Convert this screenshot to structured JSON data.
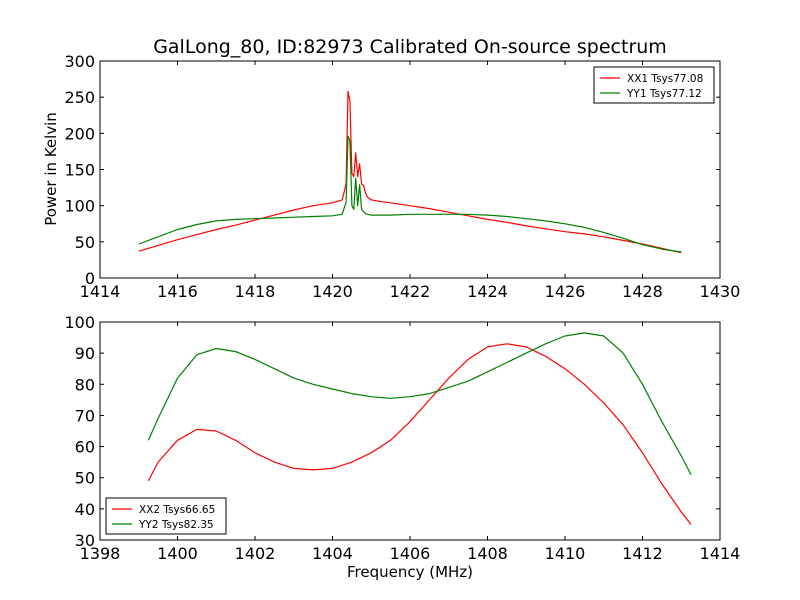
{
  "chart_data": [
    {
      "type": "line",
      "title": "GalLong_80, ID:82973 Calibrated On-source spectrum",
      "xlabel": "",
      "ylabel": "Power in Kelvin",
      "xlim": [
        1414,
        1430
      ],
      "ylim": [
        0,
        300
      ],
      "xticks": [
        1414,
        1416,
        1418,
        1420,
        1422,
        1424,
        1426,
        1428,
        1430
      ],
      "yticks": [
        0,
        50,
        100,
        150,
        200,
        250,
        300
      ],
      "legend_position": "top-right",
      "grid": false,
      "series": [
        {
          "name": "XX1 Tsys77.08",
          "color": "#ff0000",
          "x": [
            1415.0,
            1415.5,
            1416.0,
            1416.5,
            1417.0,
            1417.5,
            1418.0,
            1418.5,
            1419.0,
            1419.5,
            1420.0,
            1420.25,
            1420.35,
            1420.4,
            1420.45,
            1420.5,
            1420.55,
            1420.6,
            1420.65,
            1420.7,
            1420.75,
            1420.8,
            1420.85,
            1420.9,
            1421.0,
            1421.2,
            1421.5,
            1422.0,
            1422.5,
            1423.0,
            1423.5,
            1424.0,
            1424.5,
            1425.0,
            1425.5,
            1426.0,
            1426.5,
            1427.0,
            1427.5,
            1428.0,
            1428.5,
            1429.0
          ],
          "y": [
            37,
            45,
            53,
            60,
            67,
            73,
            80,
            87,
            94,
            100,
            104,
            108,
            130,
            258,
            245,
            145,
            140,
            173,
            140,
            158,
            130,
            128,
            118,
            112,
            108,
            106,
            104,
            100,
            96,
            91,
            86,
            81,
            77,
            72,
            68,
            64,
            61,
            57,
            52,
            47,
            41,
            35
          ]
        },
        {
          "name": "YY1 Tsys77.12",
          "color": "#008000",
          "x": [
            1415.0,
            1415.5,
            1416.0,
            1416.5,
            1417.0,
            1417.5,
            1418.0,
            1418.5,
            1419.0,
            1419.5,
            1420.0,
            1420.25,
            1420.35,
            1420.4,
            1420.45,
            1420.5,
            1420.55,
            1420.6,
            1420.65,
            1420.7,
            1420.75,
            1420.8,
            1420.85,
            1420.9,
            1421.0,
            1421.5,
            1422.0,
            1422.5,
            1423.0,
            1423.5,
            1424.0,
            1424.5,
            1425.0,
            1425.5,
            1426.0,
            1426.5,
            1427.0,
            1427.5,
            1428.0,
            1428.5,
            1429.0
          ],
          "y": [
            47,
            57,
            67,
            74,
            79,
            81,
            82,
            83,
            84,
            85,
            86,
            88,
            105,
            196,
            190,
            100,
            95,
            138,
            100,
            129,
            95,
            92,
            89,
            88,
            87,
            87,
            88,
            88,
            88,
            88,
            87,
            85,
            82,
            79,
            75,
            70,
            63,
            55,
            46,
            40,
            36
          ]
        }
      ]
    },
    {
      "type": "line",
      "title": "",
      "xlabel": "Frequency (MHz)",
      "ylabel": "",
      "xlim": [
        1398,
        1414
      ],
      "ylim": [
        30,
        100
      ],
      "xticks": [
        1398,
        1400,
        1402,
        1404,
        1406,
        1408,
        1410,
        1412,
        1414
      ],
      "yticks": [
        30,
        40,
        50,
        60,
        70,
        80,
        90,
        100
      ],
      "legend_position": "bottom-left",
      "grid": false,
      "series": [
        {
          "name": "XX2 Tsys66.65",
          "color": "#ff0000",
          "x": [
            1399.25,
            1399.5,
            1400.0,
            1400.5,
            1401.0,
            1401.5,
            1402.0,
            1402.5,
            1403.0,
            1403.5,
            1404.0,
            1404.5,
            1405.0,
            1405.5,
            1406.0,
            1406.5,
            1407.0,
            1407.5,
            1408.0,
            1408.5,
            1409.0,
            1409.5,
            1410.0,
            1410.5,
            1411.0,
            1411.5,
            1412.0,
            1412.5,
            1413.0,
            1413.25
          ],
          "y": [
            49,
            55,
            62,
            65.5,
            65,
            62,
            58,
            55,
            53,
            52.5,
            53,
            55,
            58,
            62,
            68,
            75,
            82,
            88,
            92,
            93,
            92,
            89,
            85,
            80,
            74,
            67,
            58,
            48,
            39,
            35
          ]
        },
        {
          "name": "YY2 Tsys82.35",
          "color": "#008000",
          "x": [
            1399.25,
            1399.5,
            1400.0,
            1400.5,
            1401.0,
            1401.5,
            1402.0,
            1402.5,
            1403.0,
            1403.5,
            1404.0,
            1404.5,
            1405.0,
            1405.5,
            1406.0,
            1406.5,
            1407.0,
            1407.5,
            1408.0,
            1408.5,
            1409.0,
            1409.5,
            1410.0,
            1410.5,
            1411.0,
            1411.5,
            1412.0,
            1412.5,
            1413.0,
            1413.25
          ],
          "y": [
            62,
            69,
            82,
            89.5,
            91.5,
            90.5,
            88,
            85,
            82,
            80,
            78.5,
            77,
            76,
            75.5,
            76,
            77,
            79,
            81,
            84,
            87,
            90,
            93,
            95.5,
            96.5,
            95.5,
            90,
            80,
            68,
            57,
            51
          ]
        }
      ]
    }
  ]
}
